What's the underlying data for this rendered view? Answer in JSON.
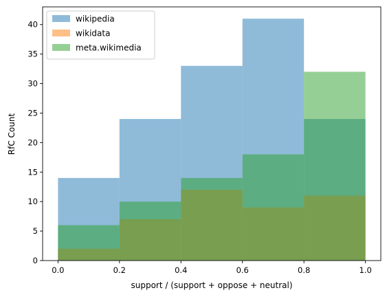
{
  "chart_data": {
    "type": "bar",
    "xlabel": "support / (support + oppose + neutral)",
    "ylabel": "RfC Count",
    "xlim": [
      -0.05,
      1.05
    ],
    "ylim": [
      0,
      43
    ],
    "bin_edges": [
      0.0,
      0.2,
      0.4,
      0.6,
      0.8,
      1.0
    ],
    "x_ticks": [
      "0.0",
      "0.2",
      "0.4",
      "0.6",
      "0.8",
      "1.0"
    ],
    "y_ticks": [
      "0",
      "5",
      "10",
      "15",
      "20",
      "25",
      "30",
      "35",
      "40"
    ],
    "legend_position": "top-left",
    "grid": false,
    "series": [
      {
        "name": "wikipedia",
        "color": "#1f77b4",
        "values": [
          14,
          24,
          33,
          41,
          24
        ]
      },
      {
        "name": "wikidata",
        "color": "#ff7f0e",
        "values": [
          2,
          7,
          12,
          9,
          11
        ]
      },
      {
        "name": "meta.wikimedia",
        "color": "#2ca02c",
        "values": [
          6,
          10,
          14,
          18,
          32
        ]
      }
    ]
  }
}
